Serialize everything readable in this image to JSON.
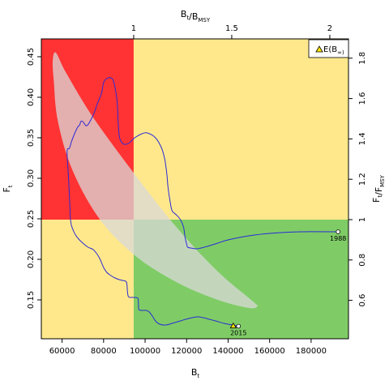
{
  "chart_data": {
    "type": "line",
    "xlabel": "B_t",
    "ylabel": "F_t",
    "x2label": "B_t/B_MSY",
    "y2label": "F_t/F_MSY",
    "xlim": [
      50000,
      198000
    ],
    "ylim": [
      0.102,
      0.472
    ],
    "x_ticks": [
      60000,
      80000,
      100000,
      120000,
      140000,
      160000,
      180000
    ],
    "x_tick_labels": [
      "60000",
      "80000",
      "100000",
      "120000",
      "140000",
      "160000",
      "180000"
    ],
    "y_ticks": [
      0.15,
      0.2,
      0.25,
      0.3,
      0.35,
      0.4,
      0.45
    ],
    "y_tick_labels": [
      "0.15",
      "0.20",
      "0.25",
      "0.30",
      "0.35",
      "0.40",
      "0.45"
    ],
    "x2_ticks": [
      1,
      1.5,
      2
    ],
    "x2_tick_labels": [
      "1",
      "1.5",
      "2"
    ],
    "y2_ticks": [
      0.6,
      0.8,
      1.0,
      1.2,
      1.4,
      1.6,
      1.8
    ],
    "y2_tick_labels": [
      "0.6",
      "0.8",
      "1",
      "1.2",
      "1.4",
      "1.6",
      "1.8"
    ],
    "reference": {
      "B_MSY": 94500,
      "F_MSY": 0.249
    },
    "quadrant_colors": {
      "red": "#ff3333",
      "yellow": "#ffe88c",
      "green": "#7fcc66"
    },
    "confidence_ellipse": {
      "color": "#d9d9d9",
      "opacity": 0.75,
      "outline": [
        [
          57000,
          0.455
        ],
        [
          62000,
          0.43
        ],
        [
          75000,
          0.375
        ],
        [
          95000,
          0.305
        ],
        [
          115000,
          0.24
        ],
        [
          135000,
          0.185
        ],
        [
          152000,
          0.148
        ],
        [
          154000,
          0.142
        ],
        [
          150000,
          0.14
        ],
        [
          135000,
          0.15
        ],
        [
          115000,
          0.172
        ],
        [
          95000,
          0.205
        ],
        [
          78000,
          0.25
        ],
        [
          65000,
          0.31
        ],
        [
          58000,
          0.37
        ],
        [
          56000,
          0.42
        ],
        [
          55500,
          0.445
        ]
      ]
    },
    "series": [
      {
        "color": "#2b2bd6",
        "x": [
          193000,
          175000,
          160000,
          150000,
          140000,
          135000,
          130000,
          127000,
          125000,
          122000,
          120500,
          120000,
          119500,
          119000,
          118500,
          117000,
          115000,
          113000,
          112000,
          111000,
          110500,
          110000,
          109500,
          108000,
          105000,
          101000,
          98500,
          95000,
          92000,
          90000,
          88500,
          87500,
          87000,
          86500,
          85000,
          83500,
          81500,
          80000,
          79000,
          77000,
          75000,
          72000,
          70000,
          69000,
          68500,
          67500,
          66000,
          64500,
          63500,
          62600,
          62400,
          63000,
          63500,
          63800,
          64000,
          64500,
          65500,
          66500,
          68000,
          70000,
          72500,
          75000,
          77000,
          78500,
          80000,
          81500,
          83500,
          85500,
          87500,
          89000,
          91000,
          91500,
          91800,
          92000,
          92500,
          94500,
          96500,
          96800,
          97000,
          98500,
          100500,
          102000,
          103500,
          105000,
          107000,
          110000,
          113000,
          117000,
          121000,
          125000,
          128000,
          131000,
          134000,
          138000,
          142000,
          144000,
          143000
        ],
        "y": [
          0.234,
          0.234,
          0.232,
          0.229,
          0.224,
          0.22,
          0.216,
          0.214,
          0.213,
          0.214,
          0.215,
          0.219,
          0.224,
          0.232,
          0.24,
          0.249,
          0.255,
          0.26,
          0.272,
          0.29,
          0.305,
          0.315,
          0.323,
          0.337,
          0.35,
          0.356,
          0.355,
          0.35,
          0.343,
          0.342,
          0.345,
          0.353,
          0.37,
          0.395,
          0.418,
          0.424,
          0.423,
          0.418,
          0.405,
          0.392,
          0.378,
          0.365,
          0.37,
          0.37,
          0.366,
          0.363,
          0.355,
          0.345,
          0.337,
          0.336,
          0.33,
          0.305,
          0.28,
          0.262,
          0.25,
          0.242,
          0.235,
          0.23,
          0.225,
          0.22,
          0.215,
          0.212,
          0.206,
          0.199,
          0.19,
          0.184,
          0.18,
          0.177,
          0.175,
          0.174,
          0.172,
          0.16,
          0.155,
          0.154,
          0.153,
          0.153,
          0.152,
          0.145,
          0.138,
          0.137,
          0.137,
          0.135,
          0.13,
          0.124,
          0.12,
          0.119,
          0.121,
          0.124,
          0.127,
          0.129,
          0.128,
          0.126,
          0.124,
          0.121,
          0.119,
          0.118,
          0.117
        ]
      }
    ],
    "points": [
      {
        "label": "1988",
        "x": 193000,
        "y": 0.234
      },
      {
        "label": "2015",
        "x": 145000,
        "y": 0.1175
      }
    ],
    "expected_marker": {
      "x": 142500,
      "y": 0.1178,
      "color": "#ffe600"
    },
    "legend": {
      "label": "E(B_∞)",
      "placement": "top-right"
    }
  }
}
